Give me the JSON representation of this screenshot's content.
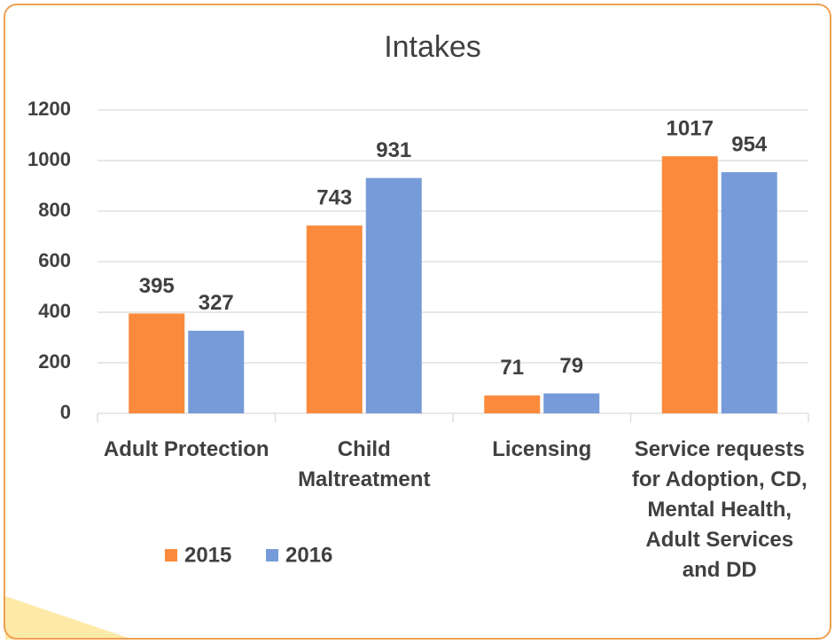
{
  "chart_data": {
    "type": "bar",
    "title": "Intakes",
    "categories": [
      "Adult Protection",
      "Child Maltreatment",
      "Licensing",
      "Service requests for Adoption, CD, Mental Health, Adult Services and DD"
    ],
    "series": [
      {
        "name": "2015",
        "color": "#fb8a3c",
        "values": [
          395,
          743,
          71,
          1017
        ]
      },
      {
        "name": "2016",
        "color": "#779bd9",
        "values": [
          327,
          931,
          79,
          954
        ]
      }
    ],
    "ylim": [
      0,
      1200
    ],
    "yticks": [
      0,
      200,
      400,
      600,
      800,
      1000,
      1200
    ],
    "grid": true,
    "legend": "bottom-left"
  }
}
